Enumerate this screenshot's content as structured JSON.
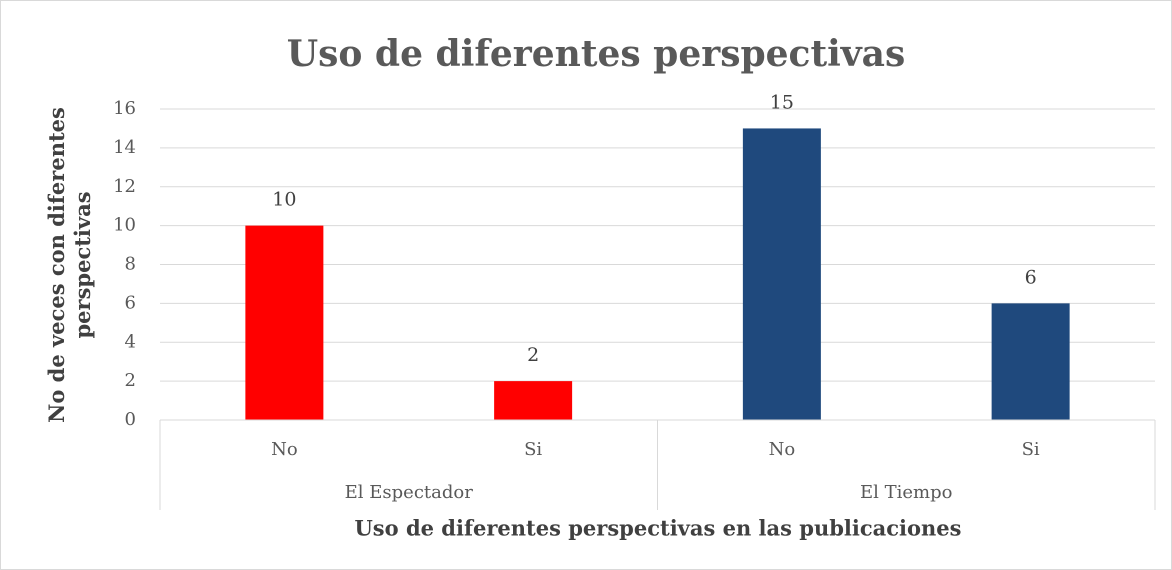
{
  "chart_data": {
    "type": "bar",
    "title": "Uso de diferentes perspectivas",
    "ylabel": "No de veces  con diferentes perspectivas",
    "xlabel": "Uso de diferentes perspectivas en las publicaciones",
    "groups": [
      "El Espectador",
      "El Tiempo"
    ],
    "categories": [
      "No",
      "Si",
      "No",
      "Si"
    ],
    "values": [
      10,
      2,
      15,
      6
    ],
    "colors": [
      "#ff0000",
      "#ff0000",
      "#1f497d",
      "#1f497d"
    ],
    "ylim": [
      0,
      16
    ],
    "yticks": [
      0,
      2,
      4,
      6,
      8,
      10,
      12,
      14,
      16
    ],
    "grid": true
  }
}
